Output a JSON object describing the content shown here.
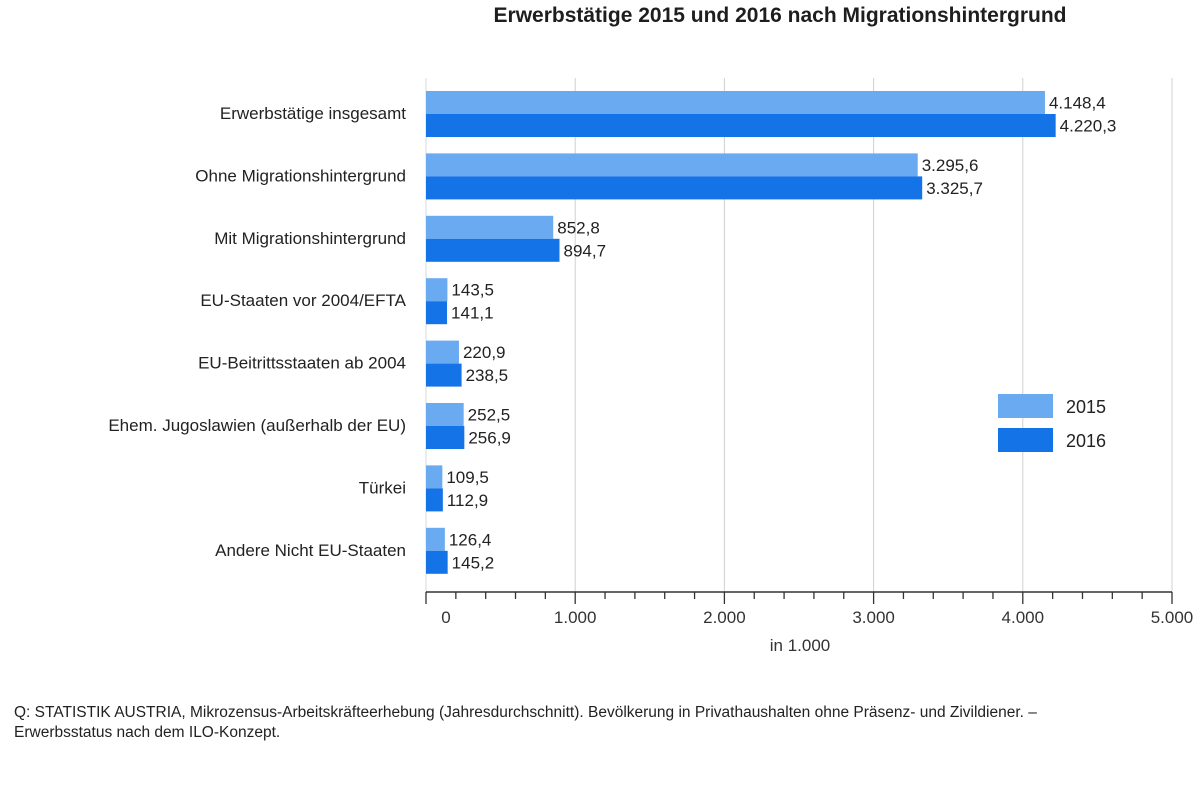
{
  "chart_data": {
    "type": "bar",
    "orientation": "horizontal",
    "title": "Erwerbstätige 2015 und 2016 nach Migrationshintergrund",
    "xlabel": "in 1.000",
    "ylabel": "",
    "xlim": [
      0,
      5000
    ],
    "xticks": [
      0,
      1000,
      2000,
      3000,
      4000,
      5000
    ],
    "xtick_labels": [
      "0",
      "1.000",
      "2.000",
      "3.000",
      "4.000",
      "5.000"
    ],
    "minor_tick_step": 200,
    "grid": true,
    "legend_position": "right",
    "categories": [
      "Erwerbstätige insgesamt",
      "Ohne Migrationshintergrund",
      "Mit Migrationshintergrund",
      "EU-Staaten vor 2004/EFTA",
      "EU-Beitrittsstaaten ab 2004",
      "Ehem. Jugoslawien (außerhalb der EU)",
      "Türkei",
      "Andere Nicht EU-Staaten"
    ],
    "series": [
      {
        "name": "2015",
        "color": "#6aaaf0",
        "values": [
          4148.4,
          3295.6,
          852.8,
          143.5,
          220.9,
          252.5,
          109.5,
          126.4
        ],
        "labels": [
          "4.148,4",
          "3.295,6",
          "852,8",
          "143,5",
          "220,9",
          "252,5",
          "109,5",
          "126,4"
        ]
      },
      {
        "name": "2016",
        "color": "#1473e6",
        "values": [
          4220.3,
          3325.7,
          894.7,
          141.1,
          238.5,
          256.9,
          112.9,
          145.2
        ],
        "labels": [
          "4.220,3",
          "3.325,7",
          "894,7",
          "141,1",
          "238,5",
          "256,9",
          "112,9",
          "145,2"
        ]
      }
    ]
  },
  "source_note": "Q: STATISTIK AUSTRIA, Mikrozensus-Arbeitskräfteerhebung (Jahresdurchschnitt). Bevölkerung in Privathaushalten ohne Präsenz- und Zivildiener. – Erwerbsstatus nach dem ILO-Konzept."
}
